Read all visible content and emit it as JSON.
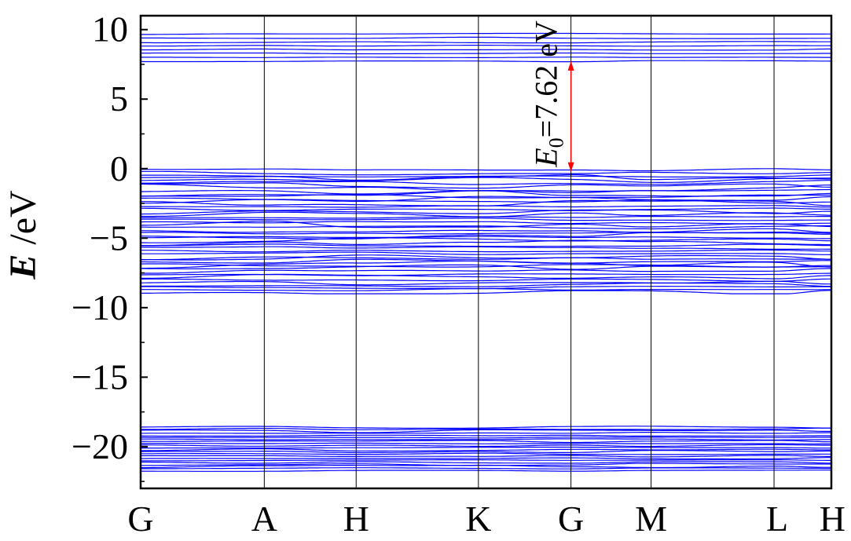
{
  "chart_data": {
    "type": "line",
    "title": "",
    "xlabel": "",
    "ylabel": {
      "italic": "E",
      "unit": " /eV"
    },
    "ylim": [
      -23,
      11
    ],
    "yticks": [
      10,
      5,
      0,
      -5,
      -10,
      -15,
      -20
    ],
    "ytick_labels": [
      "10",
      "5",
      "0",
      "−5",
      "−10",
      "−15",
      "−20"
    ],
    "kpath": [
      {
        "label": "G",
        "x": 0.0
      },
      {
        "label": "A",
        "x": 0.179
      },
      {
        "label": "H",
        "x": 0.312
      },
      {
        "label": "K",
        "x": 0.489
      },
      {
        "label": "G",
        "x": 0.623
      },
      {
        "label": "M",
        "x": 0.739
      },
      {
        "label": "L",
        "x": 0.917
      },
      {
        "label": "H",
        "x": 1.0
      }
    ],
    "xlim": [
      0,
      1
    ],
    "series_color": "#0000ff",
    "band_groups": [
      {
        "name": "conduction",
        "range": [
          7.6,
          9.8
        ],
        "count": 8
      },
      {
        "name": "valence",
        "range": [
          -9.0,
          0.0
        ],
        "count": 48
      },
      {
        "name": "semicore",
        "range": [
          -21.8,
          -18.5
        ],
        "count": 22
      }
    ],
    "annotation": {
      "text_italic": "E",
      "text_sub": "0",
      "text_rest": "=7.62 eV",
      "gap": 7.62,
      "arrow_x_label": "G",
      "from": 0.0,
      "to": 7.62,
      "arrow_color": "#ff0000"
    }
  }
}
